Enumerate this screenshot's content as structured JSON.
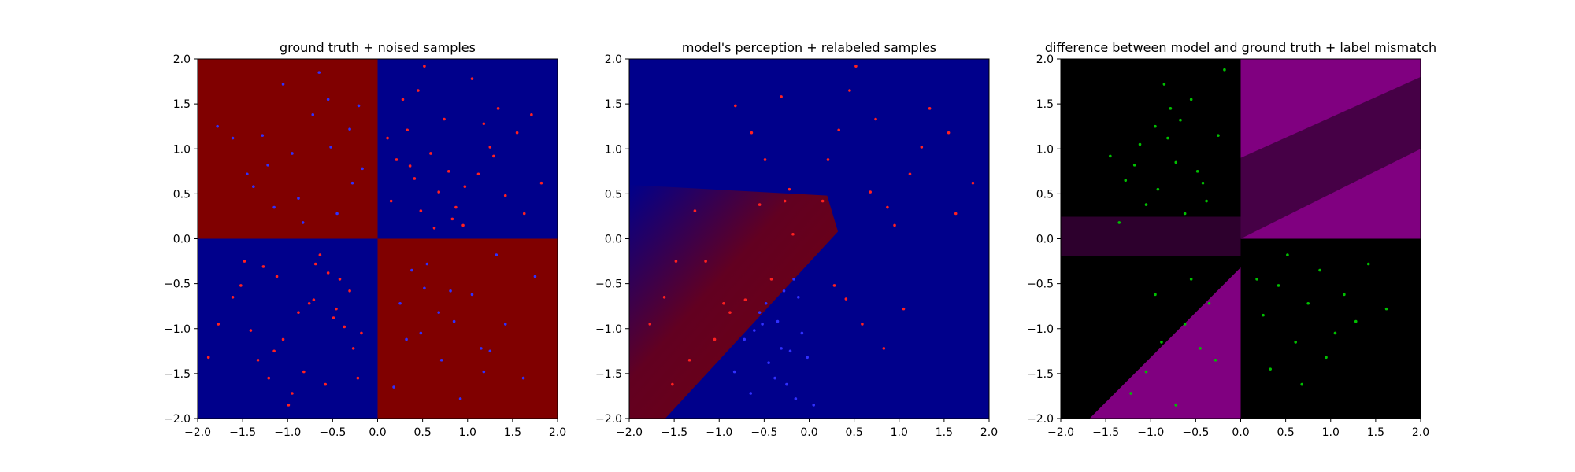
{
  "chart_data": [
    {
      "type": "scatter",
      "title": "ground truth + noised samples",
      "xlabel": "",
      "ylabel": "",
      "xlim": [
        -2.0,
        2.0
      ],
      "ylim": [
        -2.0,
        2.0
      ],
      "xticks": [
        "−2.0",
        "−1.5",
        "−1.0",
        "−0.5",
        "0.0",
        "0.5",
        "1.0",
        "1.5",
        "2.0"
      ],
      "yticks": [
        "−2.0",
        "−1.5",
        "−1.0",
        "−0.5",
        "0.0",
        "0.5",
        "1.0",
        "1.5",
        "2.0"
      ],
      "grid": false,
      "background": "checkerboard quadrants: top-left red, top-right blue, bottom-left blue, bottom-right red",
      "colors": {
        "red": "#800000",
        "blue": "#00008b",
        "point_red": "#ff2020",
        "point_blue": "#3030ff"
      },
      "series": [
        {
          "label_color": "red",
          "x": [
            0.45,
            1.12,
            0.33,
            0.87,
            1.55,
            0.21,
            0.68,
            1.34,
            1.82,
            0.52,
            0.95,
            1.25,
            0.15,
            0.74,
            1.63,
            0.41,
            1.05,
            0.59,
            1.42,
            0.28,
            0.83,
            1.18,
            0.36,
            0.97,
            1.71,
            0.63,
            1.29,
            0.48,
            0.11,
            0.79,
            -0.42,
            -1.05,
            -0.71,
            -1.48,
            -0.22,
            -0.88,
            -1.33,
            -0.55,
            -1.77,
            -0.95,
            -0.31,
            -1.15,
            -0.64,
            -1.61,
            -0.18,
            -0.82,
            -1.27,
            -0.49,
            -0.99,
            -1.52,
            -0.27,
            -0.76,
            -1.41,
            -0.58,
            -1.12,
            -0.37,
            -1.88,
            -0.69,
            -1.21,
            -0.46
          ],
          "y": [
            1.65,
            0.72,
            1.21,
            0.35,
            1.18,
            0.88,
            0.52,
            1.45,
            0.62,
            1.92,
            0.15,
            1.02,
            0.42,
            1.33,
            0.28,
            0.67,
            1.78,
            0.95,
            0.48,
            1.55,
            0.22,
            1.28,
            0.81,
            0.58,
            1.38,
            0.12,
            0.92,
            0.31,
            1.12,
            0.75,
            -0.45,
            -1.12,
            -0.68,
            -0.25,
            -1.55,
            -0.82,
            -1.35,
            -0.38,
            -0.95,
            -1.72,
            -0.58,
            -1.25,
            -0.18,
            -0.65,
            -1.05,
            -1.48,
            -0.31,
            -0.88,
            -1.85,
            -0.52,
            -1.22,
            -0.72,
            -1.02,
            -1.62,
            -0.42,
            -0.98,
            -1.32,
            -0.28,
            -1.55,
            -0.78
          ]
        },
        {
          "label_color": "blue",
          "x": [
            -0.55,
            -1.22,
            -0.31,
            -0.88,
            -1.61,
            -0.17,
            -0.72,
            -1.38,
            -0.45,
            -1.05,
            -0.95,
            -1.78,
            -0.28,
            -0.65,
            -1.15,
            -0.52,
            -1.45,
            -0.21,
            -0.83,
            -1.28,
            0.52,
            1.15,
            0.38,
            0.85,
            1.62,
            0.25,
            0.71,
            1.32,
            0.48,
            1.05,
            0.92,
            1.75,
            0.32,
            0.68,
            1.18,
            0.55,
            1.42,
            0.18,
            0.81,
            1.25
          ],
          "y": [
            1.55,
            0.82,
            1.22,
            0.45,
            1.12,
            0.78,
            1.38,
            0.58,
            0.28,
            1.72,
            0.95,
            1.25,
            0.62,
            1.85,
            0.35,
            1.02,
            0.72,
            1.48,
            0.18,
            1.15,
            -0.55,
            -1.22,
            -0.35,
            -0.92,
            -1.55,
            -0.72,
            -1.35,
            -0.18,
            -1.05,
            -0.62,
            -1.78,
            -0.42,
            -1.12,
            -0.82,
            -1.48,
            -0.28,
            -0.95,
            -1.65,
            -0.58,
            -1.25
          ]
        }
      ]
    },
    {
      "type": "scatter",
      "title": "model's perception + relabeled samples",
      "xlabel": "",
      "ylabel": "",
      "xlim": [
        -2.0,
        2.0
      ],
      "ylim": [
        -2.0,
        2.0
      ],
      "xticks": [
        "−2.0",
        "−1.5",
        "−1.0",
        "−0.5",
        "0.0",
        "0.5",
        "1.0",
        "1.5",
        "2.0"
      ],
      "yticks": [
        "−2.0",
        "−1.5",
        "−1.0",
        "−0.5",
        "0.0",
        "0.5",
        "1.0",
        "1.5",
        "2.0"
      ],
      "grid": false,
      "background": "mostly blue with a diagonal red band from the lower-left toward the center",
      "colors": {
        "red": "#800000",
        "blue": "#00008b",
        "point_red": "#ff2020",
        "point_blue": "#3030ff"
      },
      "series": [
        {
          "label_color": "red",
          "x": [
            0.45,
            1.12,
            0.33,
            0.87,
            1.55,
            0.21,
            0.68,
            1.34,
            1.82,
            0.52,
            0.95,
            1.25,
            0.15,
            0.74,
            1.63,
            -0.42,
            -1.05,
            -0.71,
            -1.48,
            -0.22,
            -0.88,
            -1.33,
            -0.55,
            -1.77,
            -0.95,
            -0.31,
            -1.15,
            -0.64,
            -1.61,
            -0.18,
            0.41,
            1.05,
            0.59,
            -0.82,
            -1.27,
            -0.49,
            0.28,
            0.83,
            -1.52,
            -0.27
          ],
          "y": [
            1.65,
            0.72,
            1.21,
            0.35,
            1.18,
            0.88,
            0.52,
            1.45,
            0.62,
            1.92,
            0.15,
            1.02,
            0.42,
            1.33,
            0.28,
            -0.45,
            -1.12,
            -0.68,
            -0.25,
            0.55,
            -0.82,
            -1.35,
            0.38,
            -0.95,
            -0.72,
            1.58,
            -0.25,
            1.18,
            -0.65,
            0.05,
            -0.67,
            -0.78,
            -0.95,
            1.48,
            0.31,
            0.88,
            -0.52,
            -1.22,
            -1.62,
            0.42
          ]
        },
        {
          "label_color": "blue",
          "x": [
            -0.55,
            -0.31,
            -0.17,
            -0.72,
            -0.45,
            -0.28,
            -0.65,
            -0.52,
            -0.21,
            -0.83,
            0.05,
            -0.12,
            -0.38,
            -0.61,
            -0.08,
            -0.25,
            -0.48,
            -0.02,
            -0.35,
            -0.15
          ],
          "y": [
            -0.82,
            -1.22,
            -0.45,
            -1.12,
            -1.38,
            -0.58,
            -1.72,
            -0.95,
            -1.25,
            -1.48,
            -1.85,
            -0.65,
            -1.55,
            -1.02,
            -1.05,
            -1.62,
            -0.72,
            -1.32,
            -0.92,
            -1.78
          ]
        }
      ]
    },
    {
      "type": "scatter",
      "title": "difference between model and ground truth + label mismatch",
      "xlabel": "",
      "ylabel": "",
      "xlim": [
        -2.0,
        2.0
      ],
      "ylim": [
        -2.0,
        2.0
      ],
      "xticks": [
        "−2.0",
        "−1.5",
        "−1.0",
        "−0.5",
        "0.0",
        "0.5",
        "1.0",
        "1.5",
        "2.0"
      ],
      "yticks": [
        "−2.0",
        "−1.5",
        "−1.0",
        "−0.5",
        "0.0",
        "0.5",
        "1.0",
        "1.5",
        "2.0"
      ],
      "grid": false,
      "background": "black where model agrees; purple where it differs (top-right quadrant, bottom-left triangle, faint band near y=0 left)",
      "colors": {
        "black": "#000000",
        "purple": "#800080",
        "point_green": "#00c000"
      },
      "series": [
        {
          "label_color": "green",
          "x": [
            -0.95,
            -0.72,
            -1.28,
            -0.55,
            -1.12,
            -0.38,
            -0.85,
            -1.45,
            -0.62,
            -0.25,
            -1.05,
            -0.48,
            -0.78,
            -1.35,
            -0.18,
            -0.92,
            -0.67,
            -1.18,
            -0.42,
            -0.81,
            0.42,
            0.88,
            0.25,
            1.15,
            0.61,
            1.42,
            0.33,
            0.75,
            1.05,
            0.52,
            1.28,
            0.18,
            0.95,
            0.68,
            1.62,
            -0.55,
            -0.88,
            -0.35,
            -1.05,
            -0.72,
            -0.45,
            -0.95,
            -1.22,
            -0.62,
            -0.28
          ],
          "y": [
            1.25,
            0.85,
            0.65,
            1.55,
            1.05,
            0.42,
            1.72,
            0.92,
            0.28,
            1.15,
            0.38,
            0.75,
            1.45,
            0.18,
            1.88,
            0.55,
            1.32,
            0.82,
            0.62,
            1.12,
            -0.52,
            -0.35,
            -0.85,
            -0.62,
            -1.15,
            -0.28,
            -1.45,
            -0.72,
            -1.05,
            -0.18,
            -0.92,
            -0.45,
            -1.32,
            -1.62,
            -0.78,
            -0.45,
            -1.15,
            -0.72,
            -1.48,
            -1.85,
            -1.22,
            -0.62,
            -1.72,
            -0.95,
            -1.35
          ]
        }
      ]
    }
  ]
}
